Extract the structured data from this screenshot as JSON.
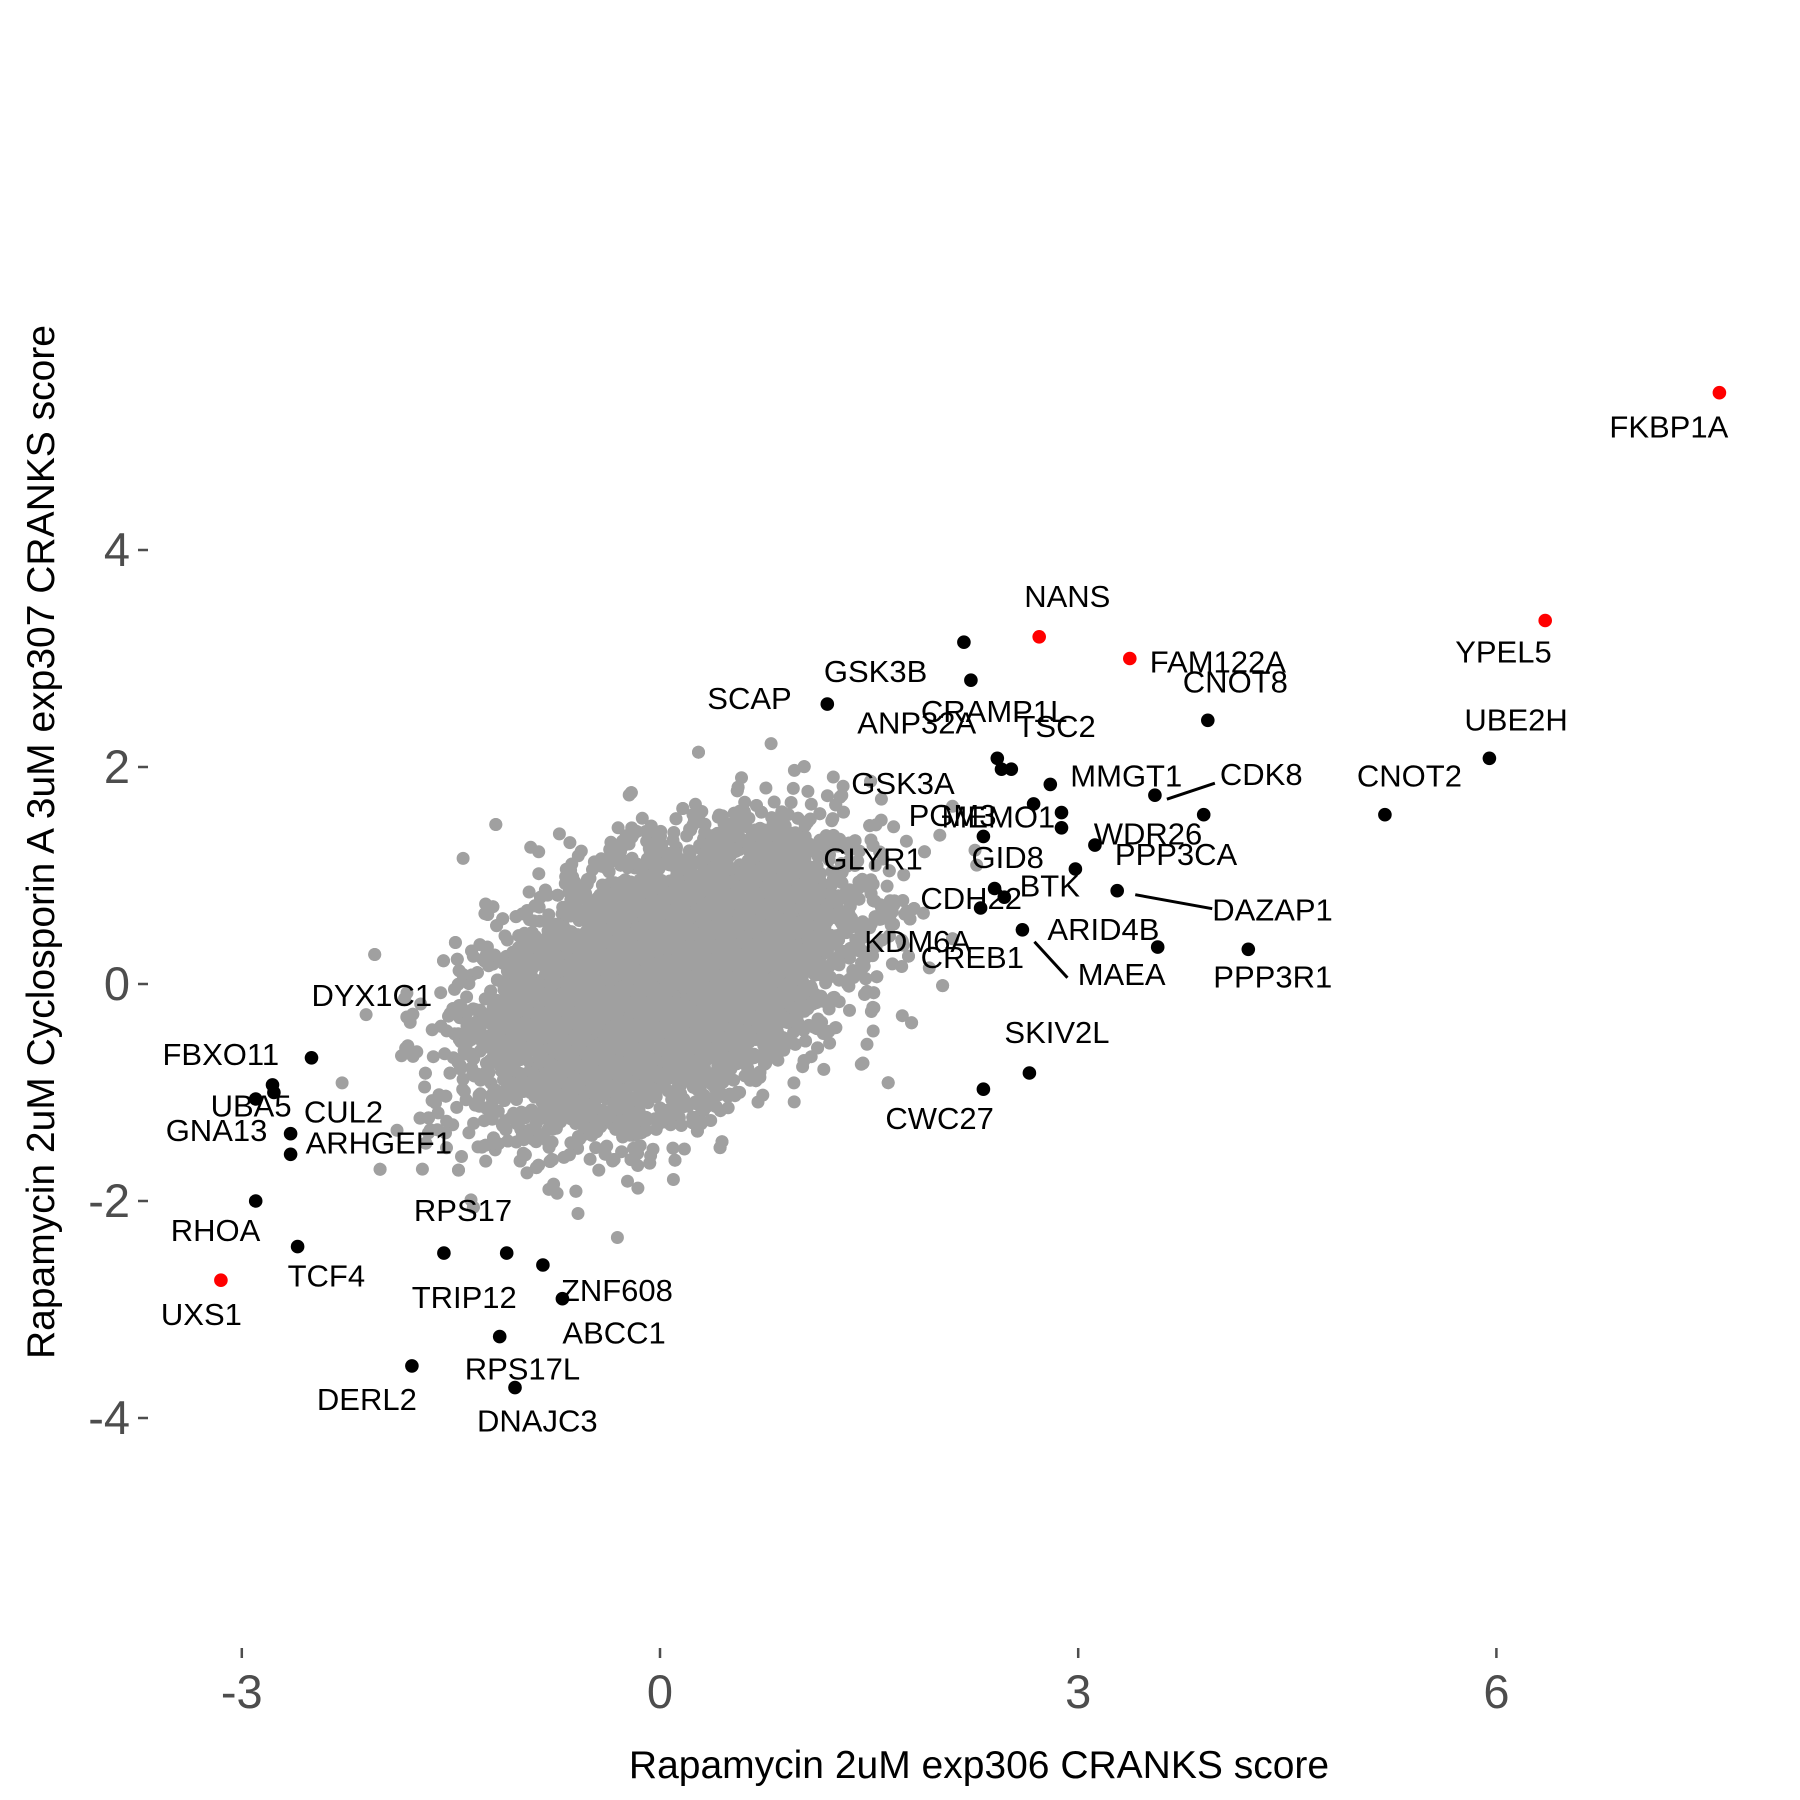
{
  "chart_data": {
    "type": "scatter",
    "title": "",
    "xlabel": "Rapamycin 2uM exp306 CRANKS score",
    "ylabel": "Rapamycin 2uM Cyclosporin A 3uM exp307 CRANKS score",
    "xlim": [
      -3.5,
      7.9
    ],
    "ylim": [
      -4.1,
      5.5
    ],
    "x_ticks": [
      -3,
      0,
      3,
      6
    ],
    "y_ticks": [
      -4,
      -2,
      0,
      2,
      4
    ],
    "x_tick_labels": [
      "-3",
      "0",
      "3",
      "6"
    ],
    "y_tick_labels": [
      "-4",
      "-2",
      "0",
      "2",
      "4"
    ],
    "grid": false,
    "legend": "none",
    "colors": {
      "background_genes": "#a0a0a0",
      "labeled_genes": "#000000",
      "highlighted_genes": "#ff0000"
    },
    "background_cloud": {
      "description_visible": false,
      "center": [
        0.05,
        0.05
      ],
      "sd": [
        0.62,
        0.62
      ],
      "correlation": 0.45
    },
    "labeled_points": [
      {
        "gene": "FKBP1A",
        "x": 7.6,
        "y": 5.45,
        "highlight": true
      },
      {
        "gene": "YPEL5",
        "x": 6.35,
        "y": 3.35,
        "highlight": true
      },
      {
        "gene": "NANS",
        "x": 2.72,
        "y": 3.2,
        "highlight": true
      },
      {
        "gene": "FAM122A",
        "x": 3.37,
        "y": 3.0,
        "highlight": true
      },
      {
        "gene": "UXS1",
        "x": -3.15,
        "y": -2.73,
        "highlight": true
      },
      {
        "gene": "GSK3B",
        "x": 2.18,
        "y": 3.15,
        "highlight": false
      },
      {
        "gene": "CRAMP1L",
        "x": 2.23,
        "y": 2.8,
        "highlight": false
      },
      {
        "gene": "SCAP",
        "x": 1.2,
        "y": 2.58,
        "highlight": false
      },
      {
        "gene": "CNOT8",
        "x": 3.93,
        "y": 2.43,
        "highlight": false
      },
      {
        "gene": "UBE2H",
        "x": 5.95,
        "y": 2.08,
        "highlight": false
      },
      {
        "gene": "ANP32A",
        "x": 2.42,
        "y": 2.08,
        "highlight": false
      },
      {
        "gene": "TSC2",
        "x": 2.45,
        "y": 1.98,
        "highlight": false
      },
      {
        "gene": "GSK3A",
        "x": 2.52,
        "y": 1.98,
        "highlight": false
      },
      {
        "gene": "MMGT1",
        "x": 2.8,
        "y": 1.84,
        "highlight": false
      },
      {
        "gene": "CDK8",
        "x": 3.55,
        "y": 1.74,
        "highlight": false
      },
      {
        "gene": "CNOT2",
        "x": 5.2,
        "y": 1.56,
        "highlight": false
      },
      {
        "gene": "PGM3",
        "x": 2.68,
        "y": 1.66,
        "highlight": false
      },
      {
        "gene": "MEMO1",
        "x": 2.88,
        "y": 1.58,
        "highlight": false
      },
      {
        "gene": "WDR26",
        "x": 3.9,
        "y": 1.56,
        "highlight": false
      },
      {
        "gene": "GLYR1",
        "x": 2.32,
        "y": 1.36,
        "highlight": false
      },
      {
        "gene": "PPP3CA",
        "x": 3.12,
        "y": 1.28,
        "highlight": false
      },
      {
        "gene": "GID8",
        "x": 2.88,
        "y": 1.44,
        "highlight": false
      },
      {
        "gene": "CDH22",
        "x": 2.98,
        "y": 1.06,
        "highlight": false
      },
      {
        "gene": "BTK",
        "x": 2.4,
        "y": 0.88,
        "highlight": false
      },
      {
        "gene": "DAZAP1",
        "x": 3.28,
        "y": 0.86,
        "highlight": false
      },
      {
        "gene": "KDM6A",
        "x": 2.47,
        "y": 0.8,
        "highlight": false
      },
      {
        "gene": "ARID4B",
        "x": 2.6,
        "y": 0.5,
        "highlight": false
      },
      {
        "gene": "CREB1",
        "x": 2.3,
        "y": 0.7,
        "highlight": false
      },
      {
        "gene": "MAEA",
        "x": 3.57,
        "y": 0.34,
        "highlight": false
      },
      {
        "gene": "PPP3R1",
        "x": 4.22,
        "y": 0.32,
        "highlight": false
      },
      {
        "gene": "SKIV2L",
        "x": 2.65,
        "y": -0.82,
        "highlight": false
      },
      {
        "gene": "CWC27",
        "x": 2.32,
        "y": -0.97,
        "highlight": false
      },
      {
        "gene": "DYX1C1",
        "x": -2.5,
        "y": -0.68,
        "highlight": false
      },
      {
        "gene": "FBXO11",
        "x": -2.78,
        "y": -0.93,
        "highlight": false
      },
      {
        "gene": "CUL2",
        "x": -2.77,
        "y": -1.0,
        "highlight": false
      },
      {
        "gene": "GNA13",
        "x": -2.9,
        "y": -1.06,
        "highlight": false
      },
      {
        "gene": "ARHGEF1",
        "x": -2.65,
        "y": -1.38,
        "highlight": false
      },
      {
        "gene": "UBA5",
        "x": -2.65,
        "y": -1.57,
        "highlight": false
      },
      {
        "gene": "RHOA",
        "x": -2.9,
        "y": -2.0,
        "highlight": false
      },
      {
        "gene": "TCF4",
        "x": -2.6,
        "y": -2.42,
        "highlight": false
      },
      {
        "gene": "RPS17",
        "x": -1.55,
        "y": -2.48,
        "highlight": false
      },
      {
        "gene": "TRIP12",
        "x": -1.1,
        "y": -2.48,
        "highlight": false
      },
      {
        "gene": "ZNF608",
        "x": -0.84,
        "y": -2.59,
        "highlight": false
      },
      {
        "gene": "ABCC1",
        "x": -0.7,
        "y": -2.9,
        "highlight": false
      },
      {
        "gene": "RPS17L",
        "x": -1.15,
        "y": -3.25,
        "highlight": false
      },
      {
        "gene": "DERL2",
        "x": -1.78,
        "y": -3.52,
        "highlight": false
      },
      {
        "gene": "DNAJC3",
        "x": -1.04,
        "y": -3.72,
        "highlight": false
      }
    ]
  }
}
